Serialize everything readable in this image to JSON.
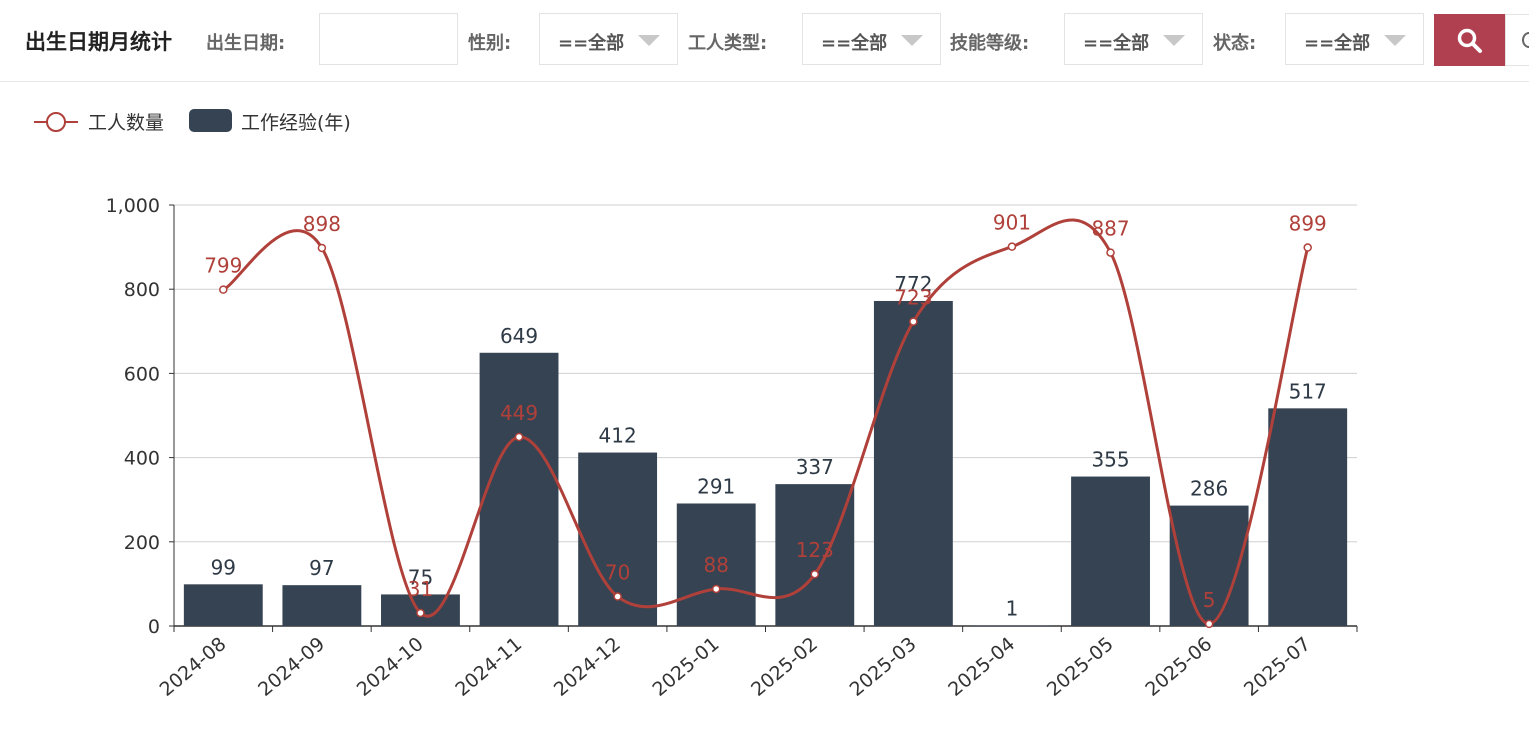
{
  "toolbar": {
    "title": "出生日期月统计",
    "birth_date_label": "出生日期:",
    "birth_date_value": "",
    "gender_label": "性别:",
    "gender_value": "==全部",
    "worker_type_label": "工人类型:",
    "worker_type_value": "==全部",
    "skill_level_label": "技能等级:",
    "skill_level_value": "==全部",
    "status_label": "状态:",
    "status_value": "==全部",
    "search_icon": "search-icon",
    "accent_color": "#b0404f"
  },
  "chart_data": {
    "type": "bar",
    "categories": [
      "2024-08",
      "2024-09",
      "2024-10",
      "2024-11",
      "2024-12",
      "2025-01",
      "2025-02",
      "2025-03",
      "2025-04",
      "2025-05",
      "2025-06",
      "2025-07"
    ],
    "series": [
      {
        "name": "工人数量",
        "type": "line",
        "smooth": true,
        "color": "#b0403a",
        "values": [
          799,
          898,
          31,
          449,
          70,
          88,
          123,
          723,
          901,
          887,
          5,
          899
        ]
      },
      {
        "name": "工作经验(年)",
        "type": "bar",
        "color": "#364352",
        "values": [
          99,
          97,
          75,
          649,
          412,
          291,
          337,
          772,
          1,
          355,
          286,
          517
        ]
      }
    ],
    "y_ticks": [
      "0",
      "200",
      "400",
      "600",
      "800",
      "1,000"
    ],
    "ylim": [
      0,
      1000
    ],
    "grid": true,
    "legend_position": "top-left",
    "data_labels": true,
    "xlabel": "",
    "ylabel": ""
  }
}
